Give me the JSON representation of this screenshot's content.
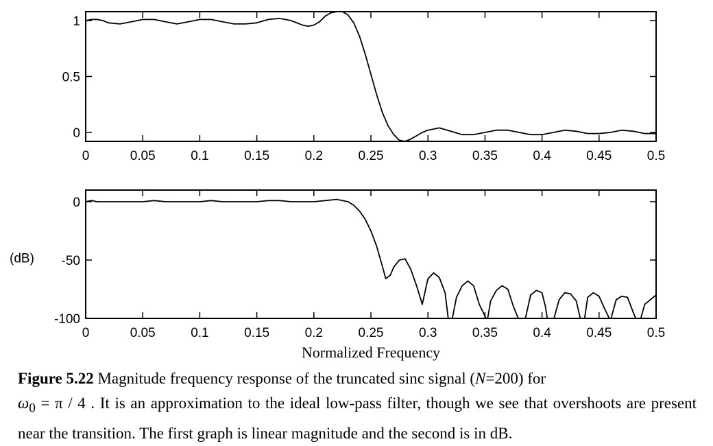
{
  "chart_data": [
    {
      "type": "line",
      "title": "",
      "xlabel": "",
      "ylabel": "",
      "xlim": [
        0,
        0.5
      ],
      "ylim": [
        -0.08,
        1.08
      ],
      "xticks": [
        0,
        0.05,
        0.1,
        0.15,
        0.2,
        0.25,
        0.3,
        0.35,
        0.4,
        0.45,
        0.5
      ],
      "xtick_labels": [
        "0",
        "0.05",
        "0.1",
        "0.15",
        "0.2",
        "0.25",
        "0.3",
        "0.35",
        "0.4",
        "0.45",
        "0.5"
      ],
      "yticks": [
        0,
        0.5,
        1
      ],
      "ytick_labels": [
        "0",
        "0.5",
        "1"
      ],
      "grid": false,
      "series": [
        {
          "x": [
            0,
            0.005,
            0.01,
            0.015,
            0.02,
            0.03,
            0.04,
            0.05,
            0.055,
            0.06,
            0.07,
            0.08,
            0.09,
            0.1,
            0.11,
            0.12,
            0.13,
            0.14,
            0.15,
            0.16,
            0.17,
            0.18,
            0.19,
            0.195,
            0.2,
            0.205,
            0.21,
            0.215,
            0.22,
            0.225,
            0.23,
            0.235,
            0.24,
            0.245,
            0.25,
            0.255,
            0.26,
            0.265,
            0.27,
            0.275,
            0.28,
            0.285,
            0.29,
            0.295,
            0.3,
            0.305,
            0.31,
            0.32,
            0.33,
            0.34,
            0.35,
            0.36,
            0.37,
            0.38,
            0.39,
            0.4,
            0.41,
            0.42,
            0.43,
            0.44,
            0.45,
            0.46,
            0.47,
            0.48,
            0.49,
            0.5
          ],
          "y": [
            1.0,
            1.01,
            1.01,
            1.0,
            0.98,
            0.97,
            0.99,
            1.01,
            1.01,
            1.01,
            0.99,
            0.97,
            0.99,
            1.01,
            1.01,
            0.99,
            0.97,
            0.97,
            0.98,
            1.01,
            1.02,
            1.0,
            0.96,
            0.95,
            0.96,
            0.99,
            1.04,
            1.07,
            1.08,
            1.08,
            1.05,
            0.98,
            0.86,
            0.7,
            0.52,
            0.34,
            0.18,
            0.06,
            -0.02,
            -0.07,
            -0.08,
            -0.06,
            -0.03,
            0.0,
            0.02,
            0.03,
            0.04,
            0.01,
            -0.02,
            -0.02,
            0.0,
            0.02,
            0.02,
            0.0,
            -0.02,
            -0.02,
            0.0,
            0.02,
            0.01,
            -0.01,
            -0.01,
            0.0,
            0.02,
            0.01,
            -0.01,
            -0.01
          ]
        }
      ]
    },
    {
      "type": "line",
      "title": "",
      "xlabel": "Normalized Frequency",
      "ylabel": "(dB)",
      "xlim": [
        0,
        0.5
      ],
      "ylim": [
        -100,
        10
      ],
      "xticks": [
        0,
        0.05,
        0.1,
        0.15,
        0.2,
        0.25,
        0.3,
        0.35,
        0.4,
        0.45,
        0.5
      ],
      "xtick_labels": [
        "0",
        "0.05",
        "0.1",
        "0.15",
        "0.2",
        "0.25",
        "0.3",
        "0.35",
        "0.4",
        "0.45",
        "0.5"
      ],
      "yticks": [
        -100,
        -50,
        0
      ],
      "ytick_labels": [
        "-100",
        "-50",
        "0"
      ],
      "grid": false,
      "series": [
        {
          "x": [
            0,
            0.005,
            0.01,
            0.05,
            0.06,
            0.07,
            0.1,
            0.11,
            0.12,
            0.15,
            0.16,
            0.17,
            0.18,
            0.2,
            0.21,
            0.22,
            0.225,
            0.23,
            0.235,
            0.24,
            0.245,
            0.25,
            0.255,
            0.26,
            0.263,
            0.267,
            0.27,
            0.275,
            0.28,
            0.285,
            0.29,
            0.295,
            0.3,
            0.305,
            0.31,
            0.315,
            0.318,
            0.321,
            0.325,
            0.33,
            0.335,
            0.34,
            0.345,
            0.35,
            0.352,
            0.355,
            0.36,
            0.365,
            0.37,
            0.375,
            0.38,
            0.385,
            0.39,
            0.395,
            0.4,
            0.403,
            0.405,
            0.41,
            0.415,
            0.42,
            0.425,
            0.43,
            0.434,
            0.437,
            0.44,
            0.445,
            0.45,
            0.455,
            0.46,
            0.465,
            0.47,
            0.475,
            0.48,
            0.483,
            0.486,
            0.49,
            0.495,
            0.5
          ],
          "y": [
            0,
            1,
            0,
            0,
            1,
            0,
            0,
            1,
            0,
            0,
            1,
            1,
            0,
            0,
            1,
            2,
            1,
            0,
            -3,
            -8,
            -15,
            -25,
            -38,
            -55,
            -66,
            -63,
            -56,
            -50,
            -49,
            -58,
            -72,
            -88,
            -66,
            -61,
            -65,
            -78,
            -102,
            -102,
            -82,
            -72,
            -68,
            -72,
            -88,
            -98,
            -102,
            -85,
            -76,
            -72,
            -75,
            -90,
            -102,
            -102,
            -80,
            -76,
            -78,
            -90,
            -102,
            -102,
            -84,
            -78,
            -79,
            -85,
            -102,
            -102,
            -82,
            -78,
            -81,
            -92,
            -102,
            -84,
            -81,
            -82,
            -95,
            -102,
            -102,
            -88,
            -84,
            -80
          ]
        }
      ]
    }
  ],
  "caption": {
    "label": "Figure 5.22",
    "text1": " Magnitude frequency response of the truncated sinc signal (",
    "n_var": "N",
    "n_value": "=200) for",
    "omega": "ω",
    "omega_sub": "0",
    "omega_rest": " = π / 4",
    "text2": " . It is an approximation to the ideal low-pass filter, though we see that overshoots are present near the transition. The first graph is linear magnitude and the second is in dB."
  }
}
